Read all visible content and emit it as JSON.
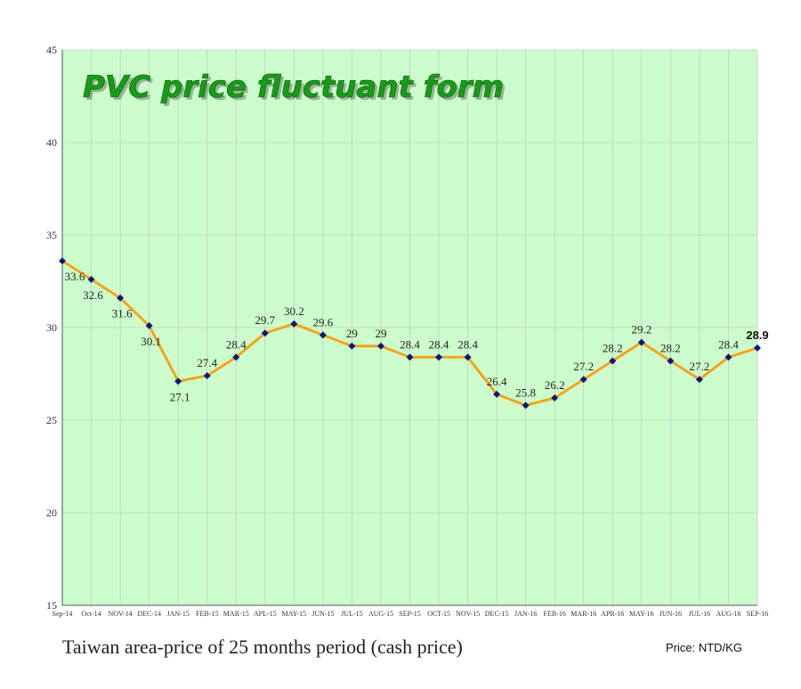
{
  "chart_data": {
    "type": "line",
    "title": "PVC price fluctuant form",
    "caption": "Taiwan area-price of 25 months period (cash price)",
    "unit_note": "Price: NTD/KG",
    "categories": [
      "Sep-14",
      "Oct-14",
      "NOV-14",
      "DEC-14",
      "JAN-15",
      "FEB-15",
      "MAR-15",
      "APL-15",
      "MAY-15",
      "JUN-15",
      "JUL-15",
      "AUG-15",
      "SEP-15",
      "OCT-15",
      "NOV-15",
      "DEC-15",
      "JAN-16",
      "FEB-16",
      "MAR-16",
      "APR-16",
      "MAY-16",
      "JUN-16",
      "JUL-16",
      "AUG-16",
      "SEP-16"
    ],
    "values": [
      33.6,
      32.6,
      31.6,
      30.1,
      27.1,
      27.4,
      28.4,
      29.7,
      30.2,
      29.6,
      29,
      29,
      28.4,
      28.4,
      28.4,
      26.4,
      25.8,
      26.2,
      27.2,
      28.2,
      29.2,
      28.2,
      27.2,
      28.4,
      28.9
    ],
    "ylim": [
      15,
      45
    ],
    "yticks": [
      15,
      20,
      25,
      30,
      35,
      40,
      45
    ],
    "xlabel": "",
    "ylabel": "",
    "grid": true,
    "legend": "none",
    "colors": {
      "plot_background": "#ccfccc",
      "grid": "#bdbdbd",
      "line": "#f5a31a",
      "marker": "#0a1a7a"
    }
  }
}
